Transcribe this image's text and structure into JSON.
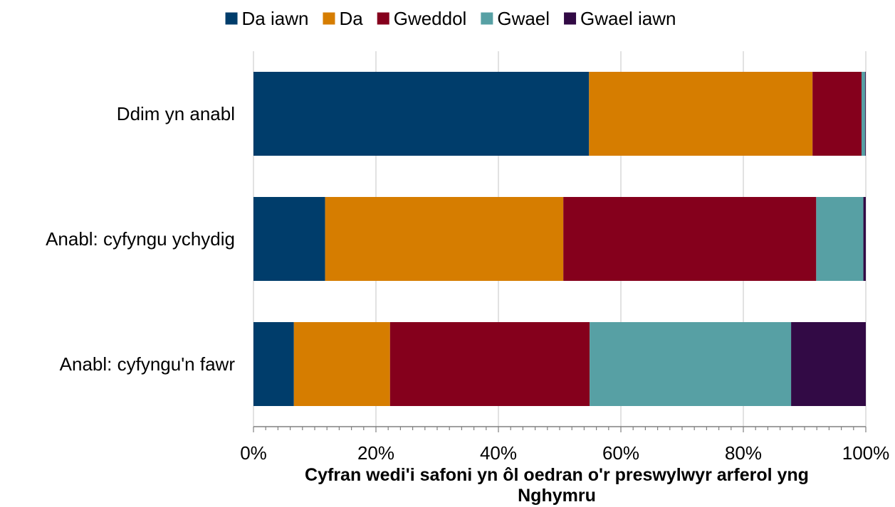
{
  "chart_data": {
    "type": "bar",
    "orientation": "horizontal",
    "stacked": true,
    "title": "",
    "xlabel": "Cyfran wedi'i safoni yn ôl oedran o'r preswylwyr arferol yng Nghymru",
    "xlabel_lines": [
      "Cyfran wedi'i safoni yn ôl oedran o'r preswylwyr arferol yng",
      "Nghymru"
    ],
    "ylabel": "",
    "xlim": [
      0,
      100
    ],
    "x_tick_labels": [
      "0%",
      "20%",
      "40%",
      "60%",
      "80%",
      "100%"
    ],
    "grid": "vertical",
    "legend_position": "top",
    "categories": [
      "Ddim yn anabl",
      "Anabl: cyfyngu ychydig",
      "Anabl: cyfyngu'n fawr"
    ],
    "series": [
      {
        "name": "Da iawn",
        "color": "#003d6b",
        "values": [
          54.8,
          11.7,
          6.6
        ]
      },
      {
        "name": "Da",
        "color": "#d67d00",
        "values": [
          36.5,
          38.9,
          15.7
        ]
      },
      {
        "name": "Gweddol",
        "color": "#85001c",
        "values": [
          8.0,
          41.3,
          32.6
        ]
      },
      {
        "name": "Gwael",
        "color": "#57a0a4",
        "values": [
          0.6,
          7.7,
          32.9
        ]
      },
      {
        "name": "Gwael iawn",
        "color": "#320a45",
        "values": [
          0.1,
          0.4,
          12.2
        ]
      }
    ]
  }
}
